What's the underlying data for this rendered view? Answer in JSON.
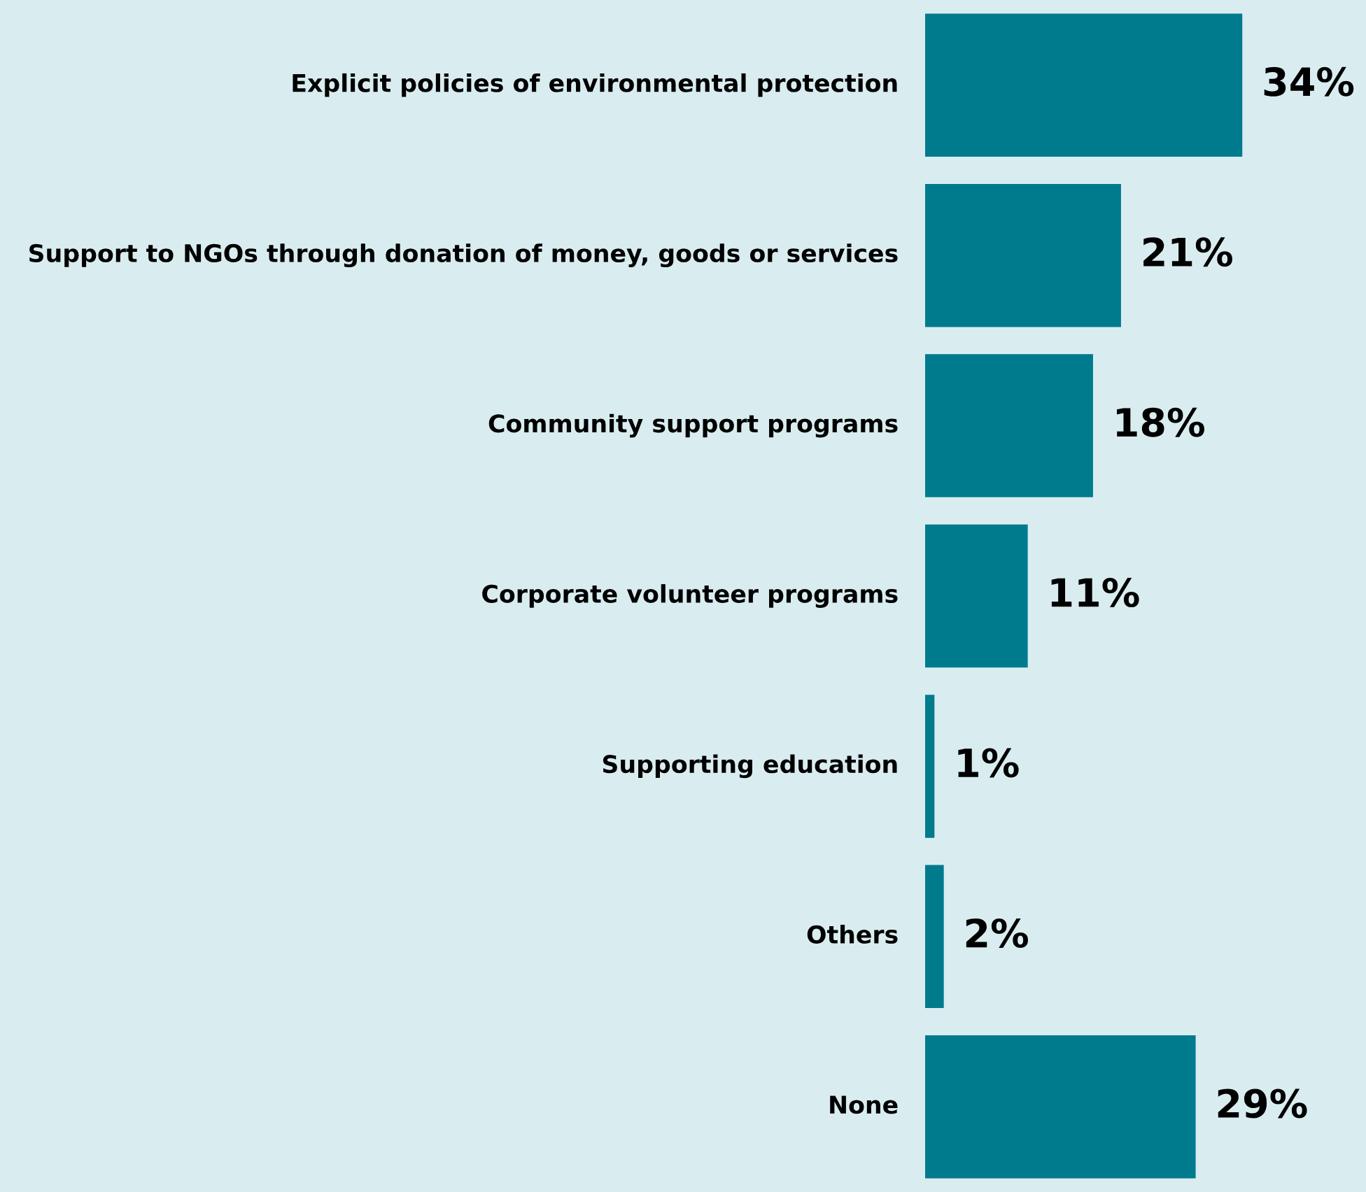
{
  "chart_data": {
    "type": "bar",
    "orientation": "horizontal",
    "categories": [
      "Explicit policies of environmental protection",
      "Support to NGOs through donation of money, goods or services",
      "Community support programs",
      "Corporate volunteer programs",
      "Supporting education",
      "Others",
      "None"
    ],
    "values": [
      34,
      21,
      18,
      11,
      1,
      2,
      29
    ],
    "value_labels": [
      "34%",
      "21%",
      "18%",
      "11%",
      "1%",
      "2%",
      "29%"
    ],
    "color": "#007b8e",
    "grid": false,
    "legend": false
  }
}
